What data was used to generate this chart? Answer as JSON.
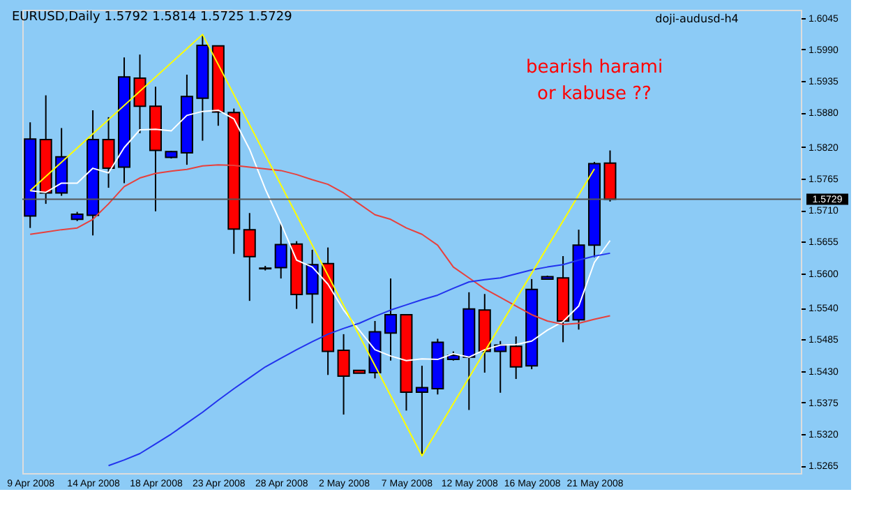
{
  "chart_data": {
    "type": "candlestick",
    "title": "EURUSD,Daily  1.5792 1.5814 1.5725 1.5729",
    "categories": [
      "9 Apr 2008",
      null,
      null,
      null,
      "14 Apr 2008",
      null,
      null,
      null,
      "18 Apr 2008",
      null,
      null,
      null,
      "23 Apr 2008",
      null,
      null,
      null,
      "28 Apr 2008",
      null,
      null,
      null,
      "2 May 2008",
      null,
      null,
      null,
      "7 May 2008",
      null,
      null,
      null,
      "12 May 2008",
      null,
      null,
      null,
      "16 May 2008",
      null,
      null,
      null,
      "21 May 2008",
      null
    ],
    "ohlc": [
      [
        1.57,
        1.5863,
        1.5679,
        1.5834
      ],
      [
        1.5833,
        1.591,
        1.5721,
        1.574
      ],
      [
        1.574,
        1.5853,
        1.5735,
        1.5803
      ],
      [
        1.5694,
        1.5707,
        1.5691,
        1.5703
      ],
      [
        1.5701,
        1.5884,
        1.5666,
        1.5833
      ],
      [
        1.5833,
        1.5872,
        1.5749,
        1.5783
      ],
      [
        1.5785,
        1.5976,
        1.5757,
        1.5942
      ],
      [
        1.594,
        1.5981,
        1.5844,
        1.5891
      ],
      [
        1.5891,
        1.5925,
        1.5708,
        1.5814
      ],
      [
        1.5802,
        1.5813,
        1.58,
        1.5812
      ],
      [
        1.581,
        1.5946,
        1.5789,
        1.5908
      ],
      [
        1.5905,
        1.6016,
        1.5831,
        1.5997
      ],
      [
        1.5996,
        1.5996,
        1.5857,
        1.5881
      ],
      [
        1.588,
        1.5887,
        1.5634,
        1.5677
      ],
      [
        1.5676,
        1.5705,
        1.5552,
        1.5629
      ],
      [
        1.5609,
        1.5613,
        1.5605,
        1.5608
      ],
      [
        1.561,
        1.5687,
        1.5591,
        1.565
      ],
      [
        1.5651,
        1.5656,
        1.5538,
        1.5563
      ],
      [
        1.5564,
        1.5641,
        1.5513,
        1.5615
      ],
      [
        1.5617,
        1.5645,
        1.5423,
        1.5464
      ],
      [
        1.5466,
        1.5494,
        1.5354,
        1.5421
      ],
      [
        1.5431,
        1.5431,
        1.5426,
        1.5426
      ],
      [
        1.5427,
        1.5517,
        1.5417,
        1.5498
      ],
      [
        1.5496,
        1.5591,
        1.5448,
        1.5528
      ],
      [
        1.5528,
        1.5528,
        1.5361,
        1.5393
      ],
      [
        1.5393,
        1.5439,
        1.5282,
        1.5401
      ],
      [
        1.5399,
        1.5486,
        1.5389,
        1.548
      ],
      [
        1.545,
        1.5464,
        1.5448,
        1.5457
      ],
      [
        1.5454,
        1.5567,
        1.5362,
        1.5538
      ],
      [
        1.5536,
        1.5564,
        1.5427,
        1.5464
      ],
      [
        1.5464,
        1.5482,
        1.5392,
        1.5475
      ],
      [
        1.5473,
        1.549,
        1.5416,
        1.5437
      ],
      [
        1.5439,
        1.559,
        1.5433,
        1.5572
      ],
      [
        1.559,
        1.5596,
        1.559,
        1.5594
      ],
      [
        1.5592,
        1.563,
        1.548,
        1.5517
      ],
      [
        1.5519,
        1.5676,
        1.5502,
        1.5649
      ],
      [
        1.5649,
        1.5794,
        1.5628,
        1.5791
      ],
      [
        1.5792,
        1.5814,
        1.5725,
        1.5729
      ]
    ],
    "colors": [
      "#0000ff",
      "#ff0000",
      "#0000ff",
      "#0000ff",
      "#0000ff",
      "#ff0000",
      "#0000ff",
      "#ff0000",
      "#ff0000",
      "#0000ff",
      "#0000ff",
      "#0000ff",
      "#ff0000",
      "#ff0000",
      "#ff0000",
      "#ff0000",
      "#0000ff",
      "#ff0000",
      "#0000ff",
      "#ff0000",
      "#ff0000",
      "#ff0000",
      "#0000ff",
      "#0000ff",
      "#ff0000",
      "#0000ff",
      "#0000ff",
      "#0000ff",
      "#0000ff",
      "#ff0000",
      "#0000ff",
      "#ff0000",
      "#0000ff",
      "#0000ff",
      "#ff0000",
      "#0000ff",
      "#0000ff",
      "#ff0000"
    ],
    "series": [
      {
        "type": "line",
        "color": "#ffffff",
        "values": [
          1.5744,
          1.5741,
          1.5757,
          1.5757,
          1.5783,
          1.5775,
          1.5819,
          1.585,
          1.5851,
          1.5848,
          1.5875,
          1.5882,
          1.5884,
          1.5869,
          1.5816,
          1.5747,
          1.5687,
          1.5623,
          1.5611,
          1.5581,
          1.5536,
          1.5501,
          1.5467,
          1.5456,
          1.5448,
          1.5451,
          1.545,
          1.546,
          1.5454,
          1.5467,
          1.5475,
          1.5476,
          1.5482,
          1.5501,
          1.5516,
          1.5543,
          1.5619,
          1.5657
        ]
      },
      {
        "type": "line",
        "color": "#e8403c",
        "values": [
          1.5668,
          1.5672,
          1.5676,
          1.5679,
          1.5694,
          1.5721,
          1.5751,
          1.5766,
          1.5774,
          1.5778,
          1.5781,
          1.5787,
          1.5789,
          1.5788,
          1.5785,
          1.5782,
          1.5779,
          1.5772,
          1.5763,
          1.5755,
          1.574,
          1.5721,
          1.5702,
          1.5694,
          1.5679,
          1.5668,
          1.5649,
          1.5611,
          1.5592,
          1.5573,
          1.5558,
          1.5543,
          1.5528,
          1.5517,
          1.5511,
          1.5513,
          1.552,
          1.5526
        ]
      },
      {
        "type": "line",
        "color": "#2233ee",
        "values": [
          null,
          null,
          null,
          null,
          null,
          1.5265,
          1.5275,
          1.5286,
          1.5303,
          1.532,
          1.5339,
          1.5358,
          1.5379,
          1.5399,
          1.5418,
          1.5437,
          1.5452,
          1.5467,
          1.5481,
          1.5494,
          1.5504,
          1.5513,
          1.5525,
          1.5536,
          1.5545,
          1.5554,
          1.5562,
          1.5574,
          1.5585,
          1.5589,
          1.5592,
          1.5599,
          1.5606,
          1.5611,
          1.5615,
          1.5623,
          1.563,
          1.5635
        ]
      },
      {
        "type": "line",
        "color": "#ffff00",
        "values": [
          1.5744,
          null,
          null,
          null,
          null,
          null,
          null,
          null,
          null,
          null,
          null,
          1.6016,
          null,
          null,
          null,
          null,
          null,
          null,
          null,
          null,
          null,
          null,
          null,
          null,
          null,
          1.5282,
          null,
          null,
          null,
          null,
          null,
          null,
          null,
          null,
          null,
          null,
          1.5782,
          null
        ]
      }
    ],
    "ylim": [
      1.5252,
      1.6059
    ],
    "yticks": [
      1.6045,
      {
        "value": 1.599,
        "label": "1.5990"
      },
      1.5935,
      {
        "value": 1.588,
        "label": "1.5880"
      },
      {
        "value": 1.582,
        "label": "1.5820"
      },
      1.5765,
      {
        "value": 1.571,
        "label": "1.5710"
      },
      1.5655,
      {
        "value": 1.56,
        "label": "1.5600"
      },
      {
        "value": 1.554,
        "label": "1.5540"
      },
      1.5485,
      {
        "value": 1.543,
        "label": "1.5430"
      },
      1.5375,
      {
        "value": 1.532,
        "label": "1.5320"
      },
      1.5265
    ],
    "ref_lines": [
      {
        "axis": "y",
        "value": 1.5729,
        "label": "1.5729",
        "color": "#555555"
      }
    ],
    "annotations": [
      "bearish harami\nor kabuse  ??",
      "doji-audusd-h4"
    ],
    "grid": false
  }
}
